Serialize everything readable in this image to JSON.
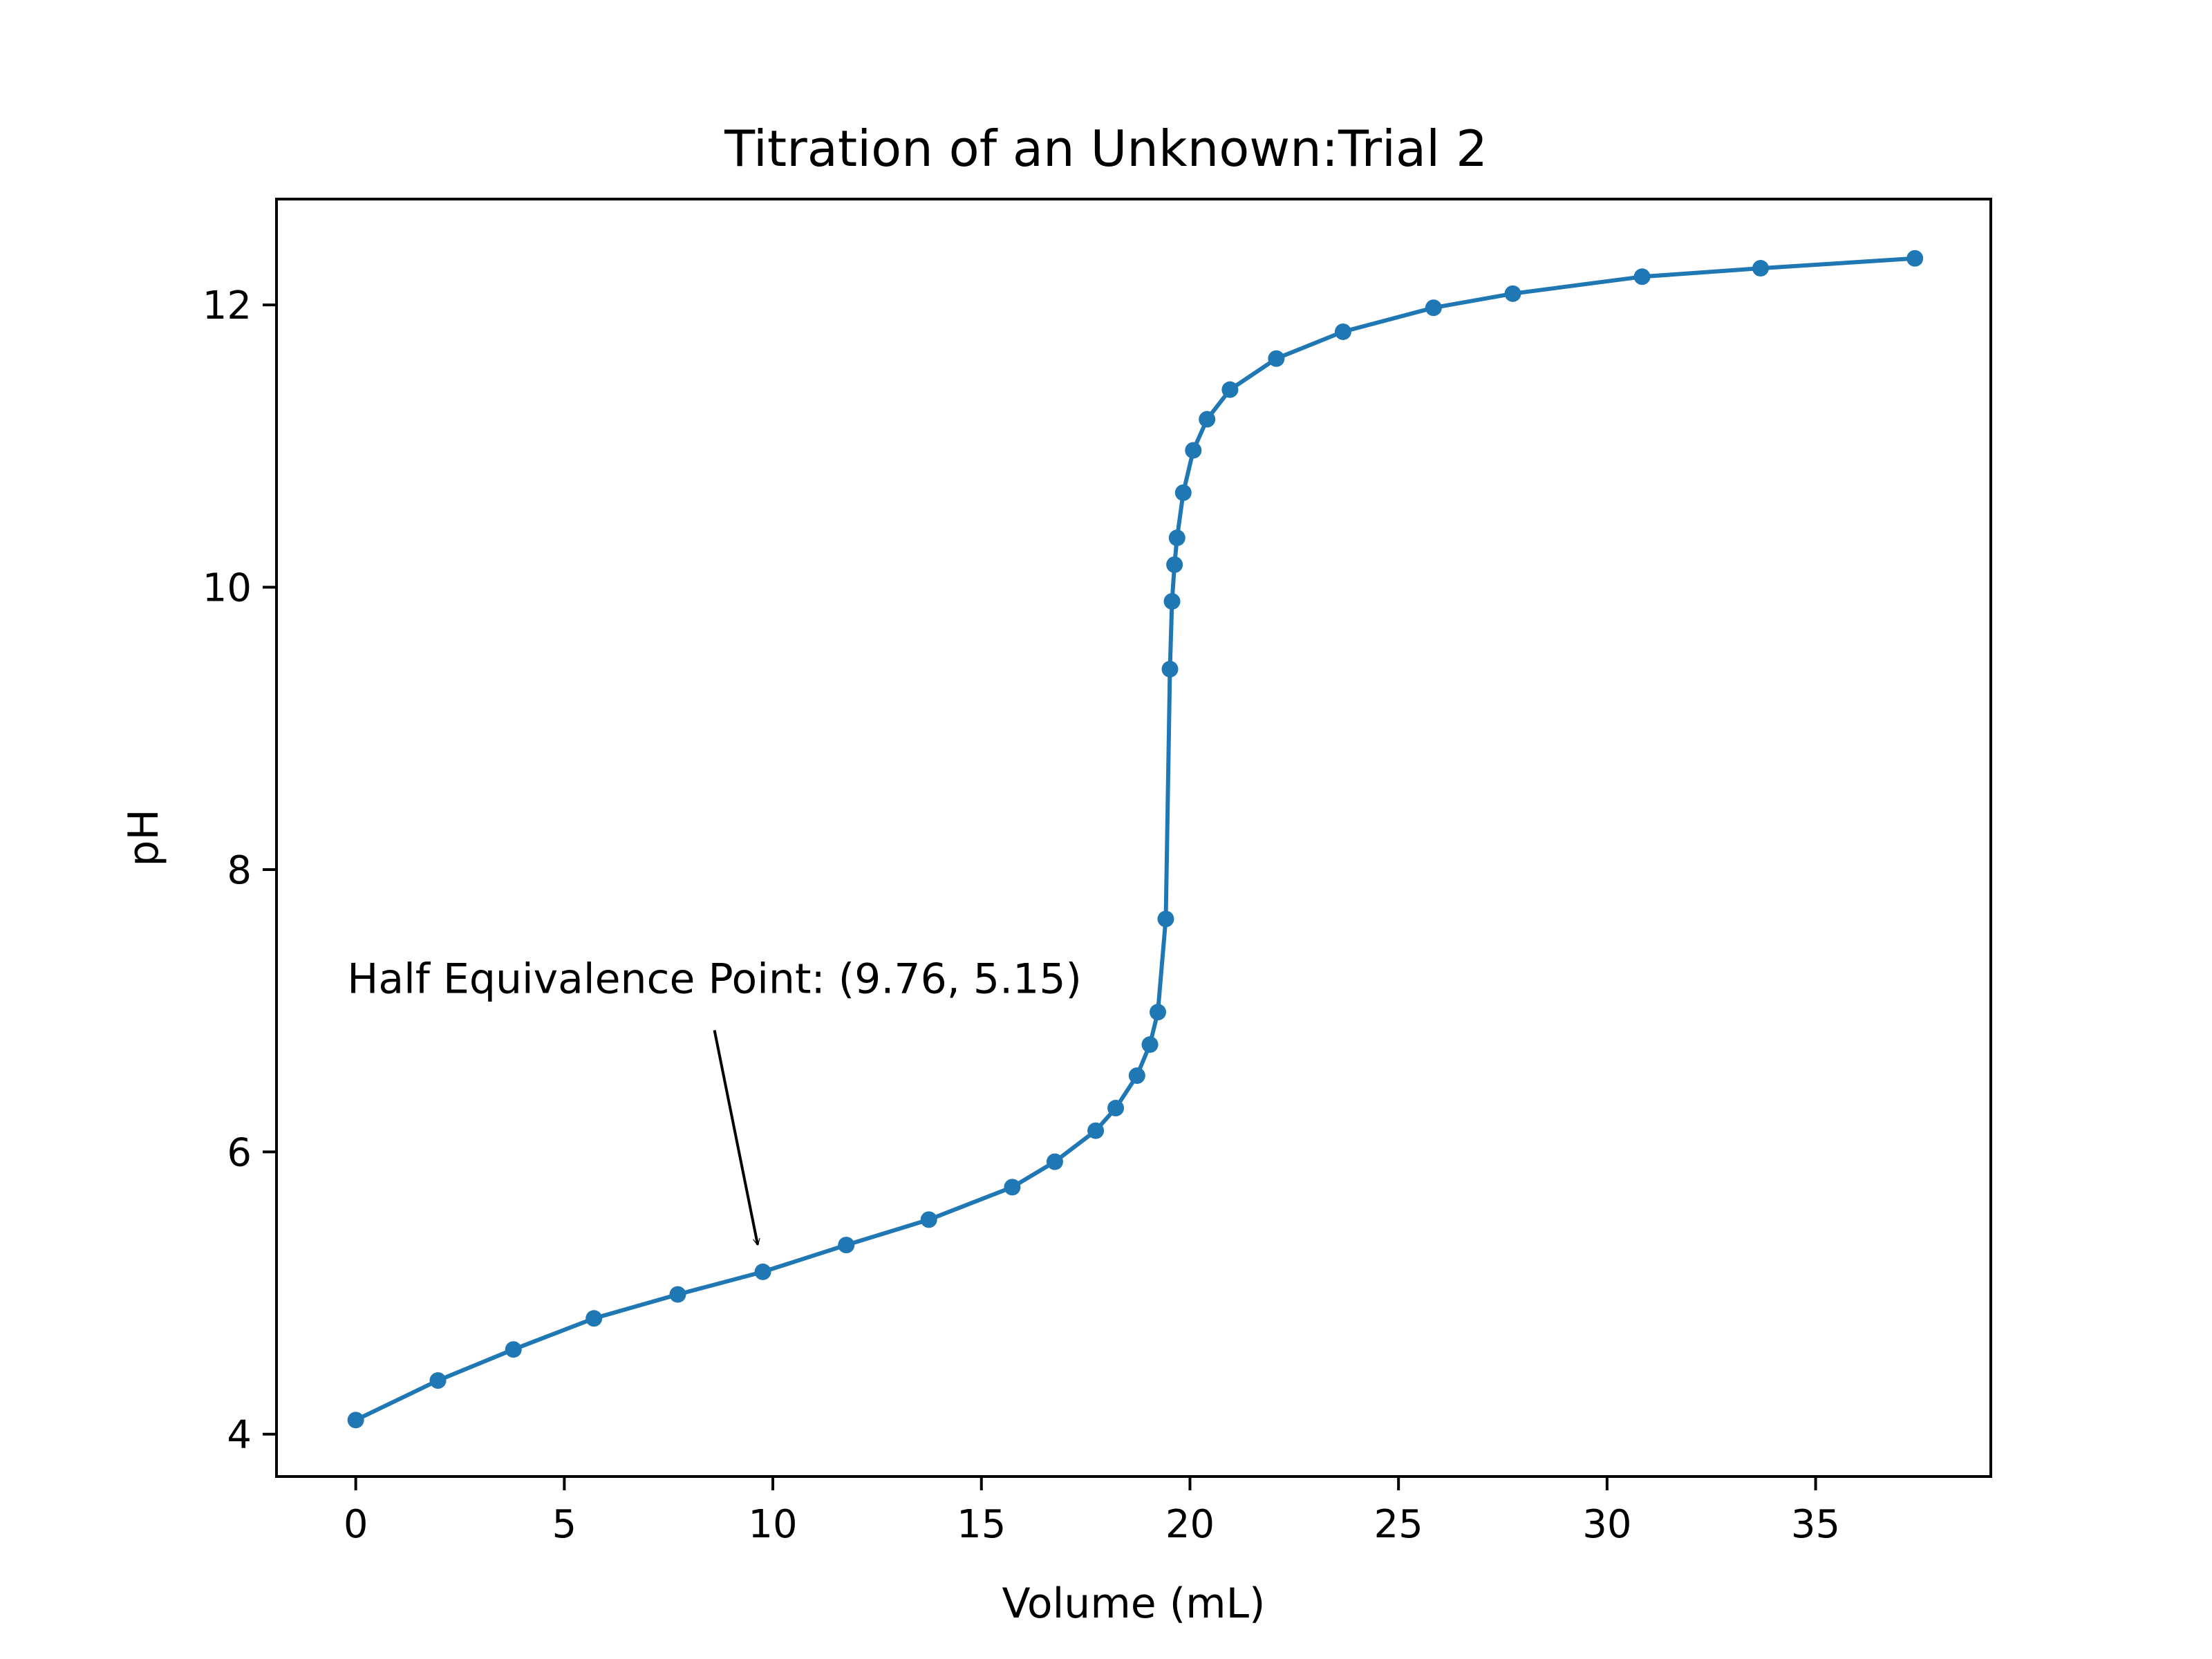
{
  "chart_data": {
    "type": "line",
    "title": "Titration of an Unknown:Trial 2",
    "xlabel": "Volume (mL)",
    "ylabel": "pH",
    "xlim": [
      -1.9,
      39.2
    ],
    "ylim": [
      3.7,
      12.75
    ],
    "xticks": [
      0,
      5,
      10,
      15,
      20,
      25,
      30,
      35
    ],
    "yticks": [
      4,
      6,
      8,
      10,
      12
    ],
    "grid": false,
    "legend": "none",
    "color": "#1f77b4",
    "marker": "circle",
    "x": [
      0,
      1.97,
      3.78,
      5.71,
      7.72,
      9.76,
      11.76,
      13.74,
      15.74,
      16.76,
      17.74,
      18.22,
      18.73,
      19.04,
      19.23,
      19.42,
      19.52,
      19.57,
      19.63,
      19.69,
      19.84,
      20.08,
      20.41,
      20.96,
      22.07,
      23.67,
      25.84,
      27.74,
      30.84,
      33.68,
      37.38
    ],
    "y": [
      4.1,
      4.38,
      4.6,
      4.82,
      4.99,
      5.15,
      5.34,
      5.52,
      5.75,
      5.93,
      6.15,
      6.31,
      6.54,
      6.76,
      6.99,
      7.65,
      9.42,
      9.9,
      10.16,
      10.35,
      10.67,
      10.97,
      11.19,
      11.4,
      11.62,
      11.81,
      11.98,
      12.08,
      12.2,
      12.26,
      12.33
    ],
    "annotations": [
      {
        "text": "Half Equivalence Point: (9.76, 5.15)",
        "point": [
          9.76,
          5.15
        ],
        "text_anchor_point": [
          8.6,
          6.95
        ]
      }
    ]
  }
}
